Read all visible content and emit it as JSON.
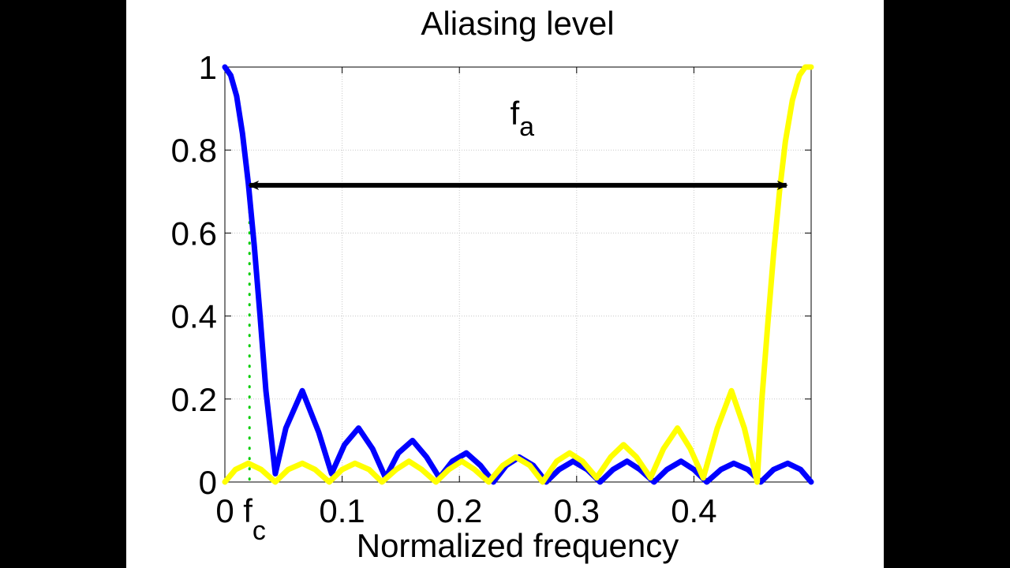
{
  "chart_data": {
    "type": "line",
    "title": "Aliasing level",
    "xlabel": "Normalized frequency",
    "ylabel": "",
    "xlim": [
      0,
      0.5
    ],
    "ylim": [
      0,
      1
    ],
    "grid": true,
    "xticks": [
      {
        "value": 0,
        "label": "0"
      },
      {
        "value": 0.1,
        "label": "0.1"
      },
      {
        "value": 0.2,
        "label": "0.2"
      },
      {
        "value": 0.3,
        "label": "0.3"
      },
      {
        "value": 0.4,
        "label": "0.4"
      }
    ],
    "yticks": [
      {
        "value": 0,
        "label": "0"
      },
      {
        "value": 0.2,
        "label": "0.2"
      },
      {
        "value": 0.4,
        "label": "0.4"
      },
      {
        "value": 0.6,
        "label": "0.6"
      },
      {
        "value": 0.8,
        "label": "0.8"
      },
      {
        "value": 1,
        "label": "1"
      }
    ],
    "series": [
      {
        "color": "#0000ff",
        "x": [
          0,
          0.005,
          0.01,
          0.015,
          0.02,
          0.025,
          0.03,
          0.035,
          0.043,
          0.052,
          0.066,
          0.08,
          0.091,
          0.102,
          0.114,
          0.126,
          0.137,
          0.148,
          0.16,
          0.172,
          0.183,
          0.194,
          0.206,
          0.218,
          0.229,
          0.24,
          0.251,
          0.263,
          0.274,
          0.285,
          0.297,
          0.309,
          0.32,
          0.331,
          0.343,
          0.354,
          0.366,
          0.377,
          0.389,
          0.4,
          0.411,
          0.423,
          0.434,
          0.446,
          0.457,
          0.468,
          0.48,
          0.491,
          0.5
        ],
        "y": [
          1.0,
          0.98,
          0.93,
          0.84,
          0.72,
          0.57,
          0.4,
          0.22,
          0.02,
          0.13,
          0.22,
          0.12,
          0.02,
          0.09,
          0.13,
          0.08,
          0.01,
          0.07,
          0.1,
          0.06,
          0.01,
          0.05,
          0.07,
          0.04,
          0.0,
          0.04,
          0.06,
          0.04,
          0.0,
          0.03,
          0.05,
          0.03,
          0.0,
          0.03,
          0.05,
          0.03,
          0.0,
          0.03,
          0.05,
          0.03,
          0.0,
          0.03,
          0.045,
          0.03,
          0.0,
          0.03,
          0.045,
          0.03,
          0.0
        ]
      },
      {
        "color": "#ffff00",
        "x": [
          0,
          0.009,
          0.02,
          0.031,
          0.043,
          0.054,
          0.066,
          0.077,
          0.089,
          0.1,
          0.111,
          0.123,
          0.134,
          0.146,
          0.157,
          0.168,
          0.18,
          0.191,
          0.202,
          0.213,
          0.225,
          0.237,
          0.248,
          0.26,
          0.271,
          0.283,
          0.294,
          0.305,
          0.317,
          0.329,
          0.34,
          0.351,
          0.363,
          0.374,
          0.386,
          0.397,
          0.408,
          0.42,
          0.432,
          0.443,
          0.454,
          0.458,
          0.463,
          0.468,
          0.473,
          0.478,
          0.484,
          0.49,
          0.495,
          0.5
        ],
        "y": [
          0.0,
          0.03,
          0.045,
          0.03,
          0.0,
          0.03,
          0.045,
          0.03,
          0.0,
          0.03,
          0.045,
          0.03,
          0.0,
          0.03,
          0.05,
          0.03,
          0.0,
          0.03,
          0.05,
          0.03,
          0.0,
          0.04,
          0.06,
          0.04,
          0.0,
          0.05,
          0.07,
          0.05,
          0.01,
          0.06,
          0.09,
          0.06,
          0.01,
          0.08,
          0.13,
          0.08,
          0.01,
          0.13,
          0.22,
          0.13,
          0.0,
          0.2,
          0.38,
          0.55,
          0.7,
          0.82,
          0.92,
          0.98,
          1.0,
          1.0
        ]
      }
    ],
    "annotations": {
      "fc": {
        "label": "f",
        "sub": "c",
        "x": 0.021,
        "color": "#00cc00"
      },
      "fa": {
        "label": "f",
        "sub": "a",
        "x_start": 0.021,
        "x_end": 0.479,
        "y": 0.715
      }
    }
  }
}
